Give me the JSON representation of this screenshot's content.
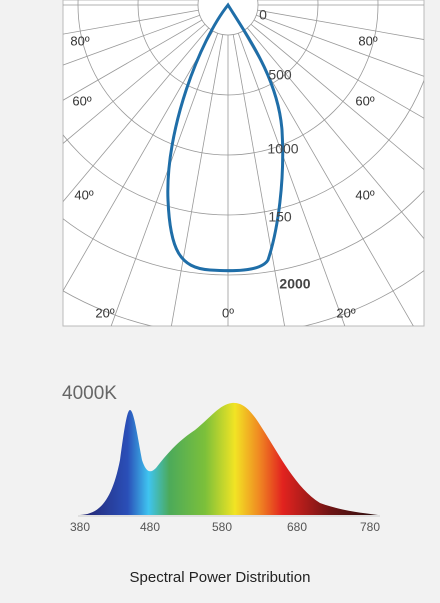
{
  "polar": {
    "angle_labels": [
      "80º",
      "80º",
      "60º",
      "60º",
      "40º",
      "40º",
      "20º",
      "20º",
      "0º"
    ],
    "radial_labels": [
      "0",
      "500",
      "1000",
      "150",
      "2000"
    ]
  },
  "spectrum": {
    "title": "4000K",
    "x_labels": [
      "380",
      "480",
      "580",
      "680",
      "780"
    ],
    "caption": "Spectral Power Distribution"
  }
}
